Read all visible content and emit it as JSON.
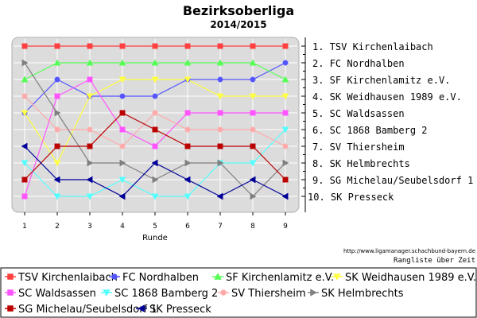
{
  "chart_data": {
    "type": "line",
    "title": "Bezirksoberliga",
    "subtitle": "2014/2015",
    "xlabel": "Runde",
    "x": [
      1,
      2,
      3,
      4,
      5,
      6,
      7,
      8,
      9
    ],
    "ylim": [
      1,
      10
    ],
    "y_inverted": true,
    "grid": true,
    "legend_position": "bottom",
    "rank_labels": [
      "1. TSV Kirchenlaibach",
      "2. FC Nordhalben",
      "3. SF Kirchenlamitz e.V.",
      "4. SK Weidhausen 1989 e.V.",
      "5. SC Waldsassen",
      "6. SC 1868 Bamberg 2",
      "7. SV Thiersheim",
      "8. SK Helmbrechts",
      "9. SG Michelau/Seubelsdorf 1",
      "10. SK Presseck"
    ],
    "source_url": "http://www.ligamanager.schachbund-bayern.de",
    "caption": "Rangliste über Zeit",
    "series": [
      {
        "name": "TSV Kirchenlaibach",
        "color": "#ff4040",
        "marker": "square",
        "values": [
          1,
          1,
          1,
          1,
          1,
          1,
          1,
          1,
          1
        ]
      },
      {
        "name": "FC Nordhalben",
        "color": "#5555ff",
        "marker": "circle",
        "values": [
          5,
          3,
          4,
          4,
          4,
          3,
          3,
          3,
          2
        ]
      },
      {
        "name": "SF Kirchenlamitz e.V.",
        "color": "#55ff55",
        "marker": "triangle-up",
        "values": [
          3,
          2,
          2,
          2,
          2,
          2,
          2,
          2,
          3
        ]
      },
      {
        "name": "SK Weidhausen 1989 e.V.",
        "color": "#ffff44",
        "marker": "triangle-down",
        "values": [
          5,
          8,
          4,
          3,
          3,
          3,
          4,
          4,
          4
        ]
      },
      {
        "name": "SC Waldsassen",
        "color": "#ff55ff",
        "marker": "square",
        "values": [
          10,
          4,
          3,
          6,
          7,
          5,
          5,
          5,
          5
        ]
      },
      {
        "name": "SC 1868 Bamberg 2",
        "color": "#55ffff",
        "marker": "triangle-down",
        "values": [
          8,
          10,
          10,
          9,
          10,
          10,
          8,
          8,
          6
        ]
      },
      {
        "name": "SV Thiersheim",
        "color": "#ffaaaa",
        "marker": "circle",
        "values": [
          4,
          6,
          6,
          7,
          5,
          6,
          6,
          6,
          7
        ]
      },
      {
        "name": "SK Helmbrechts",
        "color": "#808080",
        "marker": "triangle-right",
        "values": [
          2,
          5,
          8,
          8,
          9,
          8,
          8,
          10,
          8
        ]
      },
      {
        "name": "SG Michelau/Seubelsdorf 1",
        "color": "#bb0000",
        "marker": "square",
        "values": [
          9,
          7,
          7,
          5,
          6,
          7,
          7,
          7,
          9
        ]
      },
      {
        "name": "SK Presseck",
        "color": "#000099",
        "marker": "triangle-left",
        "values": [
          7,
          9,
          9,
          10,
          8,
          9,
          10,
          9,
          10
        ]
      }
    ]
  }
}
